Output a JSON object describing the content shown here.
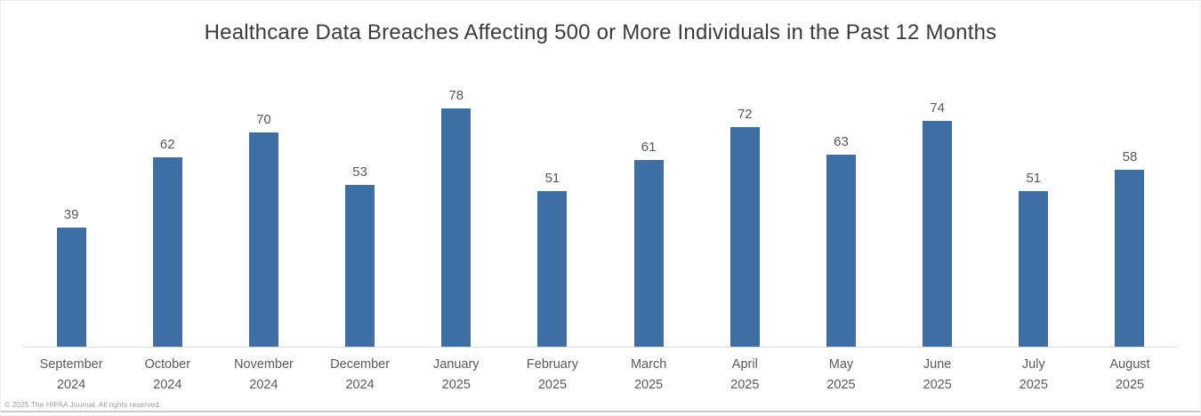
{
  "page": {
    "copyright": "© 2025 The HIPAA Journal. All rights reserved."
  },
  "chart_data": {
    "type": "bar",
    "title": "Healthcare Data Breaches Affecting 500 or More Individuals in the Past 12 Months",
    "categories": [
      "September 2024",
      "October 2024",
      "November 2024",
      "December 2024",
      "January 2025",
      "February 2025",
      "March 2025",
      "April 2025",
      "May 2025",
      "June 2025",
      "July 2025",
      "August 2025"
    ],
    "values": [
      39,
      62,
      70,
      53,
      78,
      51,
      61,
      72,
      63,
      74,
      51,
      58
    ],
    "xlabel": "",
    "ylabel": "",
    "ylim": [
      0,
      78
    ],
    "grid": false,
    "legend": false,
    "data_labels_shown": true,
    "bar_color": "#3E6FA4",
    "value_label_color": "#595959",
    "axis_label_color": "#595959",
    "title_color": "#3b3b3b",
    "baseline_color": "#d9d9d9"
  }
}
